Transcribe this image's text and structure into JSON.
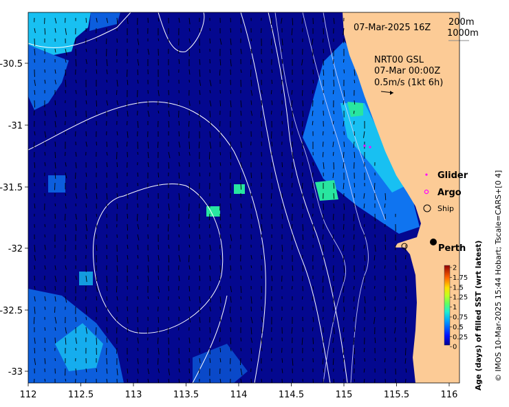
{
  "map": {
    "date_label": "07-Mar-2025 16Z",
    "depth_200": "200m",
    "depth_1000": "1000m",
    "current_title": "NRT00 GSL",
    "current_time": "07-Mar 00:00Z",
    "current_scale": "0.5m/s (1kt 6h)",
    "city": "Perth",
    "x_ticks": [
      "112",
      "112.5",
      "113",
      "113.5",
      "114",
      "114.5",
      "115",
      "115.5",
      "116"
    ],
    "y_ticks": [
      "-30.5",
      "-31",
      "-31.5",
      "-32",
      "-32.5",
      "-33"
    ]
  },
  "legend": {
    "glider": "Glider",
    "argo": "Argo",
    "ship": "Ship"
  },
  "colorbar": {
    "title": "Age (days) of filled SST (wrt latest)",
    "ticks": [
      "2",
      "1.75",
      "1.5",
      "1.25",
      "1",
      "0.75",
      "0.5",
      "0.25",
      "0"
    ]
  },
  "credit": "© IMOS 10-Mar-2025 15:44 Hobart; Tscale=CARS+[0 4]",
  "colors": {
    "ocean": "#04088f",
    "land": "#fccb96",
    "young": "#0f74f0",
    "mid": "#18c0f2",
    "green": "#28e6a0"
  }
}
